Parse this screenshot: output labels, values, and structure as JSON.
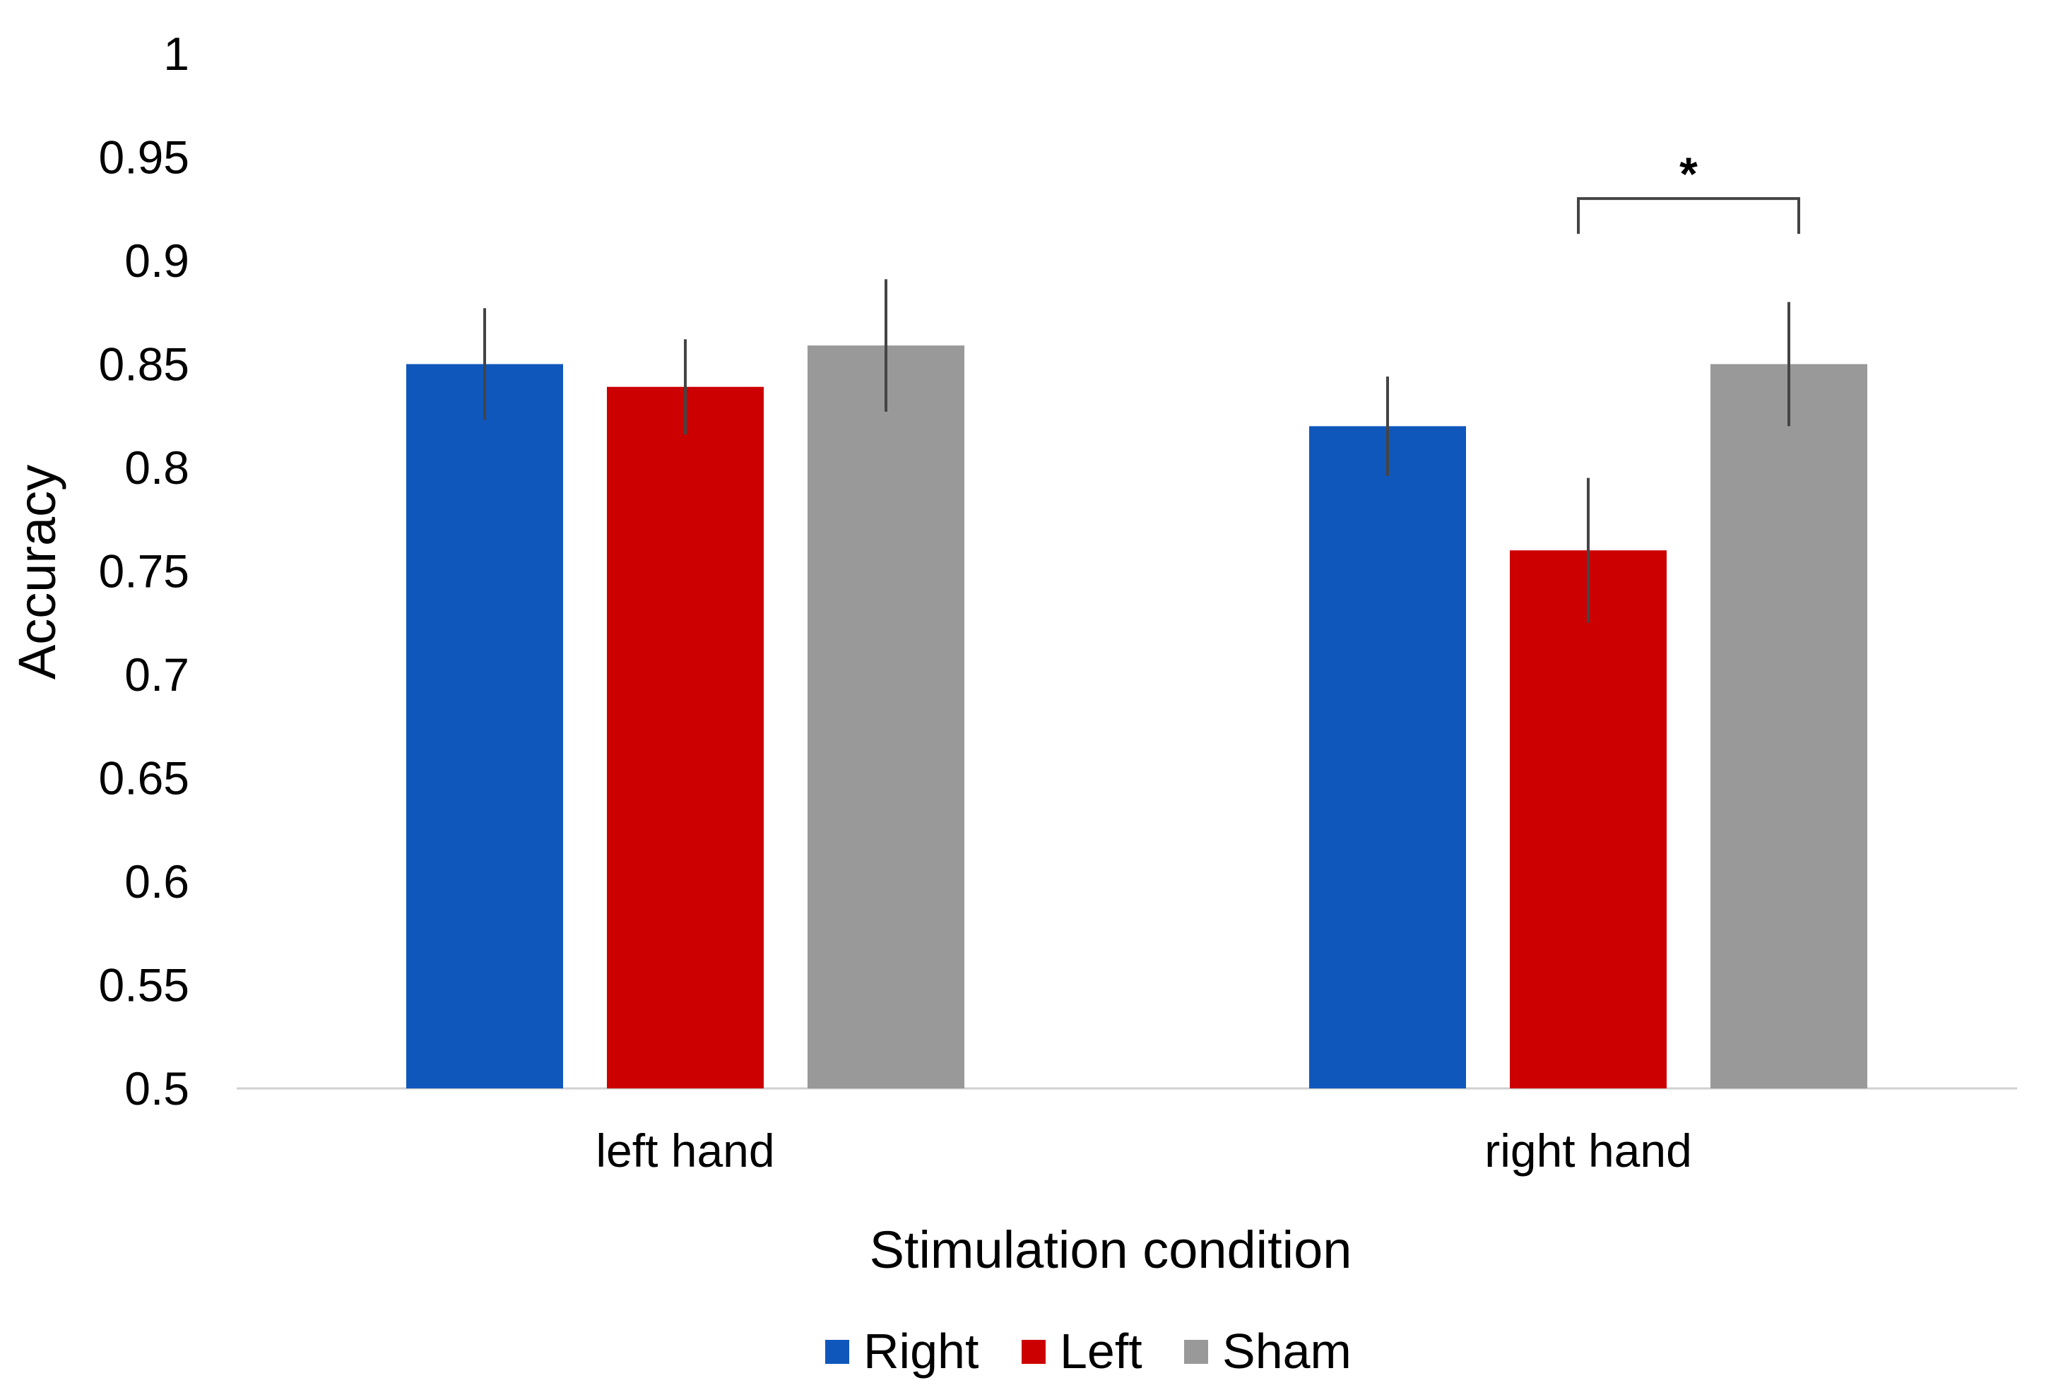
{
  "chart_data": {
    "type": "bar",
    "title": "",
    "xlabel": "Stimulation condition",
    "ylabel": "Accuracy",
    "ylim": [
      0.5,
      1
    ],
    "yticks": [
      "0.5",
      "0.55",
      "0.6",
      "0.65",
      "0.7",
      "0.75",
      "0.8",
      "0.85",
      "0.9",
      "0.95",
      "1"
    ],
    "grid": false,
    "categories": [
      "left hand",
      "right hand"
    ],
    "series": [
      {
        "name": "Right",
        "color": "#1057BB",
        "values": [
          0.85,
          0.82
        ],
        "errors": [
          0.027,
          0.024
        ]
      },
      {
        "name": "Left",
        "color": "#CC0000",
        "values": [
          0.839,
          0.76
        ],
        "errors": [
          0.023,
          0.035
        ]
      },
      {
        "name": "Sham",
        "color": "#999999",
        "values": [
          0.859,
          0.85
        ],
        "errors": [
          0.032,
          0.03
        ]
      }
    ],
    "annotations": [
      {
        "label": "*",
        "category": "right hand",
        "from_series": "Left",
        "to_series": "Sham",
        "y": 0.93
      }
    ],
    "legend": "bottom-center"
  }
}
